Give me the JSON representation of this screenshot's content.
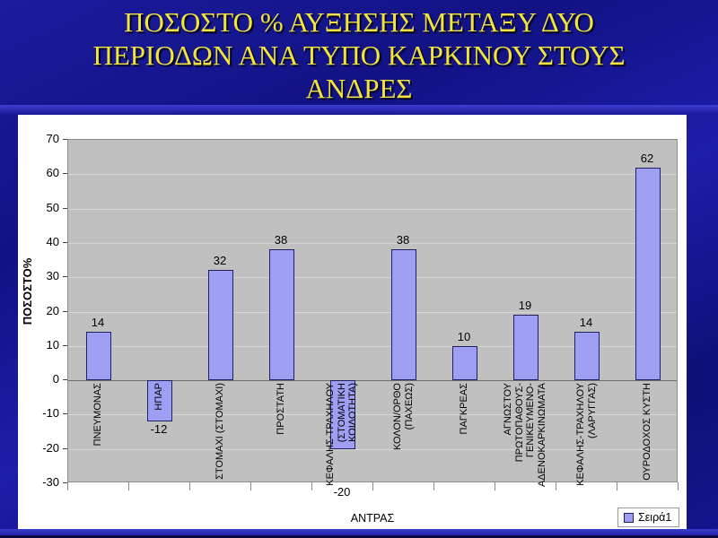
{
  "slide": {
    "title_lines": [
      "ΠΟΣΟΣΤΟ % ΑΥΞΗΣΗΣ ΜΕΤΑΞΥ ΔΥΟ",
      "ΠΕΡΙΟΔΩΝ ΑΝΑ ΤΥΠΟ ΚΑΡΚΙΝΟΥ ΣΤΟΥΣ",
      "ΑΝΔΡΕΣ"
    ],
    "title_color": "#f2e43c",
    "background_color": "#14148f",
    "accent_line_color": "#2e2ec8"
  },
  "chart_data": {
    "type": "bar",
    "categories": [
      "ΠΝΕΥΜΟΝΑΣ",
      "ΗΠΑΡ",
      "ΣΤΟΜΑΧΙ (ΣΤΟΜΑΧΙ)",
      "ΠΡΟΣΤΑΤΗ",
      "ΚΕΦΑΛΗΣ-ΤΡΑΧΗΛΟΥ\n(ΣΤΟΜΑΤΙΚΗ\nΚΟΙΛΟΤΗΤΑ)",
      "ΚΟΛΟΝ/ΟΡΘΟ\n(ΠΑΧΕΩΣ)",
      "ΠΑΓΚΡΕΑΣ",
      "ΑΓΝΩΣΤΟΥ\nΠΡΩΤΟΠΑΘΟΥΣ-\nΓΕΝΙΚΕΥΜΕΝΟ-\nΑΔΕΝΟΚΑΡΚΙΝΩΜΑΤΑ",
      "ΚΕΦΑΛΗΣ-ΤΡΑΧΗΛΟΥ\n(ΛΑΡΥΓΓΑΣ)",
      "ΟΥΡΟΔΟΧΟΣ ΚΥΣΤΗ"
    ],
    "values": [
      14,
      -12,
      32,
      38,
      -20,
      38,
      10,
      19,
      14,
      62
    ],
    "data_labels": [
      "14",
      "-12",
      "32",
      "38",
      "-20",
      "38",
      "10",
      "19",
      "14",
      "62"
    ],
    "series_name": "Σειρά1",
    "xlabel": "ΑΝΤΡΑΣ",
    "ylabel": "ΠΟΣΟΣΤΟ%",
    "ylim": [
      -30,
      70
    ],
    "yticks": [
      70,
      60,
      50,
      40,
      30,
      20,
      10,
      0,
      -10,
      -20,
      -30
    ],
    "grid": true,
    "legend_position": "bottom-right",
    "colors": {
      "bar_fill": "#9e9ef2",
      "bar_border": "#20205e",
      "plot_bg": "#c0c0c0",
      "gridline": "#d6d6d6",
      "chart_bg": "#ffffff"
    }
  }
}
